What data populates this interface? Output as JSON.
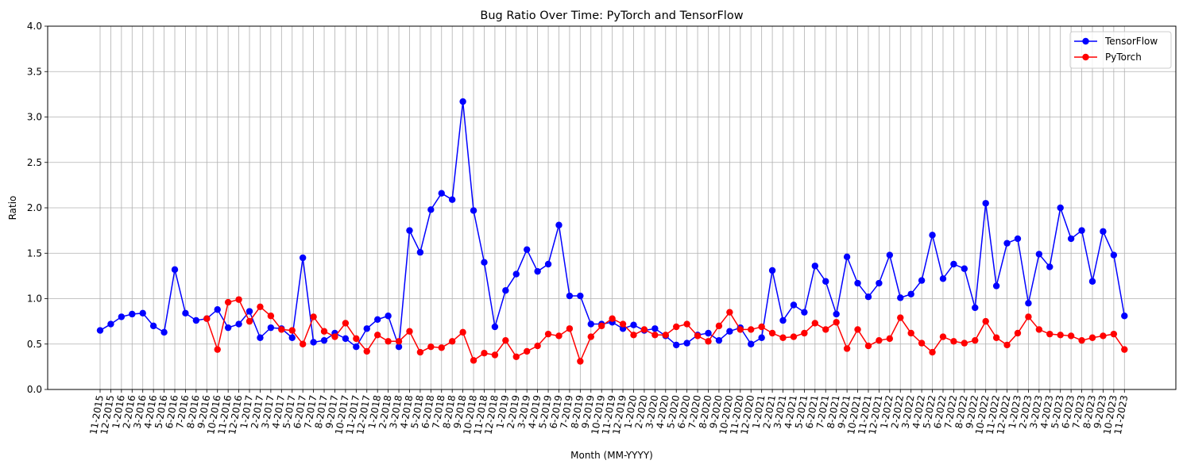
{
  "chart_data": {
    "type": "line",
    "title": "Bug Ratio Over Time: PyTorch and TensorFlow",
    "xlabel": "Month (MM-YYYY)",
    "ylabel": "Ratio",
    "ylim": [
      0,
      4
    ],
    "yticks": [
      "0.0",
      "0.5",
      "1.0",
      "1.5",
      "2.0",
      "2.5",
      "3.0",
      "3.5",
      "4.0"
    ],
    "grid": true,
    "legend_position": "top-right",
    "categories": [
      "11-2015",
      "12-2015",
      "1-2016",
      "2-2016",
      "3-2016",
      "4-2016",
      "5-2016",
      "6-2016",
      "7-2016",
      "8-2016",
      "9-2016",
      "10-2016",
      "11-2016",
      "12-2016",
      "1-2017",
      "2-2017",
      "3-2017",
      "4-2017",
      "5-2017",
      "6-2017",
      "7-2017",
      "8-2017",
      "9-2017",
      "10-2017",
      "11-2017",
      "12-2017",
      "1-2018",
      "2-2018",
      "3-2018",
      "4-2018",
      "5-2018",
      "6-2018",
      "7-2018",
      "8-2018",
      "9-2018",
      "10-2018",
      "11-2018",
      "12-2018",
      "1-2019",
      "2-2019",
      "3-2019",
      "4-2019",
      "5-2019",
      "6-2019",
      "7-2019",
      "8-2019",
      "9-2019",
      "10-2019",
      "11-2019",
      "12-2019",
      "1-2020",
      "2-2020",
      "3-2020",
      "4-2020",
      "5-2020",
      "6-2020",
      "7-2020",
      "8-2020",
      "9-2020",
      "10-2020",
      "11-2020",
      "12-2020",
      "1-2021",
      "2-2021",
      "3-2021",
      "4-2021",
      "5-2021",
      "6-2021",
      "7-2021",
      "8-2021",
      "9-2021",
      "10-2021",
      "11-2021",
      "12-2021",
      "1-2022",
      "2-2022",
      "3-2022",
      "4-2022",
      "5-2022",
      "6-2022",
      "7-2022",
      "8-2022",
      "9-2022",
      "10-2022",
      "11-2022",
      "12-2022",
      "1-2023",
      "2-2023",
      "3-2023",
      "4-2023",
      "5-2023",
      "6-2023",
      "7-2023",
      "8-2023",
      "9-2023",
      "10-2023",
      "11-2023"
    ],
    "series": [
      {
        "name": "TensorFlow",
        "color": "#0000ff",
        "values": [
          0.65,
          0.72,
          0.8,
          0.83,
          0.84,
          0.7,
          0.63,
          1.32,
          0.84,
          0.76,
          0.78,
          0.88,
          0.68,
          0.72,
          0.86,
          0.57,
          0.68,
          0.67,
          0.57,
          1.45,
          0.52,
          0.54,
          0.62,
          0.56,
          0.47,
          0.67,
          0.77,
          0.81,
          0.47,
          1.75,
          1.51,
          1.98,
          2.16,
          2.09,
          3.17,
          1.97,
          1.4,
          0.69,
          1.09,
          1.27,
          1.54,
          1.3,
          1.38,
          1.81,
          1.03,
          1.03,
          0.72,
          0.72,
          0.74,
          0.67,
          0.71,
          0.65,
          0.67,
          0.59,
          0.49,
          0.51,
          0.6,
          0.62,
          0.54,
          0.64,
          0.68,
          0.5,
          0.57,
          1.31,
          0.76,
          0.93,
          0.85,
          1.36,
          1.19,
          0.83,
          1.46,
          1.17,
          1.02,
          1.17,
          1.48,
          1.01,
          1.05,
          1.2,
          1.7,
          1.22,
          1.38,
          1.33,
          0.9,
          2.05,
          1.14,
          1.61,
          1.66,
          0.95,
          1.49,
          1.35,
          2.0,
          1.66,
          1.75,
          1.19,
          1.74,
          1.48,
          0.81
        ]
      },
      {
        "name": "PyTorch",
        "color": "#ff0000",
        "values": [
          null,
          null,
          null,
          null,
          null,
          null,
          null,
          null,
          null,
          null,
          0.78,
          0.44,
          0.96,
          0.99,
          0.75,
          0.91,
          0.81,
          0.66,
          0.65,
          0.5,
          0.8,
          0.64,
          0.58,
          0.73,
          0.56,
          0.42,
          0.6,
          0.53,
          0.53,
          0.64,
          0.41,
          0.47,
          0.46,
          0.53,
          0.63,
          0.32,
          0.4,
          0.38,
          0.54,
          0.36,
          0.42,
          0.48,
          0.61,
          0.59,
          0.67,
          0.31,
          0.58,
          0.7,
          0.78,
          0.72,
          0.6,
          0.66,
          0.6,
          0.6,
          0.69,
          0.72,
          0.59,
          0.53,
          0.7,
          0.85,
          0.66,
          0.66,
          0.69,
          0.62,
          0.57,
          0.58,
          0.62,
          0.73,
          0.66,
          0.74,
          0.45,
          0.66,
          0.48,
          0.54,
          0.56,
          0.79,
          0.62,
          0.51,
          0.41,
          0.58,
          0.53,
          0.51,
          0.54,
          0.75,
          0.57,
          0.49,
          0.62,
          0.8,
          0.66,
          0.61,
          0.6,
          0.59,
          0.54,
          0.57,
          0.59,
          0.61,
          0.44
        ]
      }
    ]
  }
}
